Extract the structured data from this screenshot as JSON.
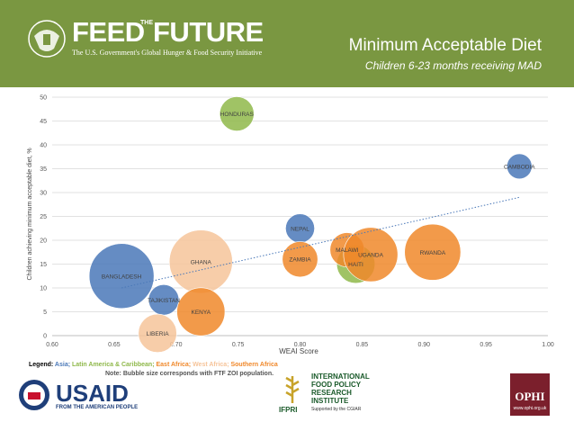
{
  "header": {
    "logo_feed": "FEED",
    "logo_the": "THE",
    "logo_future": "FUTURE",
    "tagline": "The U.S. Government's Global Hunger & Food Security Initiative",
    "title": "Minimum Acceptable Diet",
    "subtitle": "Children 6-23 months receiving MAD",
    "background_color": "#7a9741"
  },
  "chart_data": {
    "type": "scatter",
    "subtype": "bubble",
    "xlabel": "WEAI Score",
    "ylabel": "Children achieving minimum acceptable diet, %",
    "xlim": [
      0.6,
      1.0
    ],
    "ylim": [
      0,
      50
    ],
    "x_ticks": [
      "0.60",
      "0.65",
      "0.70",
      "0.75",
      "0.80",
      "0.85",
      "0.90",
      "0.95",
      "1.00"
    ],
    "x_tick_values": [
      0.6,
      0.65,
      0.7,
      0.75,
      0.8,
      0.85,
      0.9,
      0.95,
      1.0
    ],
    "y_ticks": [
      "0",
      "5",
      "10",
      "15",
      "20",
      "25",
      "30",
      "35",
      "40",
      "45",
      "50"
    ],
    "y_tick_values": [
      0,
      5,
      10,
      15,
      20,
      25,
      30,
      35,
      40,
      45,
      50
    ],
    "grid": true,
    "region_colors": {
      "Asia": "#4a78b8",
      "Latin America & Caribbean": "#8fb84a",
      "East Africa": "#f0882a",
      "West Africa": "#f6c49a",
      "Southern Africa": "#f0882a"
    },
    "points": [
      {
        "label": "BANGLADESH",
        "x": 0.656,
        "y": 12.5,
        "size": 1.0,
        "region": "Asia"
      },
      {
        "label": "TAJIKISTAN",
        "x": 0.69,
        "y": 7.5,
        "size": 0.22,
        "region": "Asia"
      },
      {
        "label": "LIBERIA",
        "x": 0.685,
        "y": 0.5,
        "size": 0.35,
        "region": "West Africa"
      },
      {
        "label": "GHANA",
        "x": 0.72,
        "y": 15.5,
        "size": 0.95,
        "region": "West Africa"
      },
      {
        "label": "KENYA",
        "x": 0.72,
        "y": 5.0,
        "size": 0.55,
        "region": "East Africa"
      },
      {
        "label": "HONDURAS",
        "x": 0.749,
        "y": 46.5,
        "size": 0.28,
        "region": "Latin America & Caribbean"
      },
      {
        "label": "NEPAL",
        "x": 0.8,
        "y": 22.5,
        "size": 0.2,
        "region": "Asia"
      },
      {
        "label": "ZAMBIA",
        "x": 0.8,
        "y": 16.0,
        "size": 0.3,
        "region": "Southern Africa"
      },
      {
        "label": "HAITI",
        "x": 0.845,
        "y": 15.0,
        "size": 0.35,
        "region": "Latin America & Caribbean"
      },
      {
        "label": "MALAWI",
        "x": 0.838,
        "y": 18.0,
        "size": 0.28,
        "region": "Southern Africa"
      },
      {
        "label": "UGANDA",
        "x": 0.857,
        "y": 17.0,
        "size": 0.7,
        "region": "East Africa"
      },
      {
        "label": "RWANDA",
        "x": 0.907,
        "y": 17.5,
        "size": 0.75,
        "region": "East Africa"
      },
      {
        "label": "CAMBODIA",
        "x": 0.977,
        "y": 35.5,
        "size": 0.15,
        "region": "Asia"
      }
    ],
    "trendline": {
      "style": "dotted",
      "color": "#4a78b8",
      "from": [
        0.656,
        10.0
      ],
      "to": [
        0.977,
        29.0
      ]
    }
  },
  "footer": {
    "legend_label": "Legend:",
    "legend_items": [
      {
        "text": "Asia",
        "color": "#4a78b8"
      },
      {
        "text": "Latin America & Caribbean",
        "color": "#8fb84a"
      },
      {
        "text": "East Africa",
        "color": "#f0882a"
      },
      {
        "text": "West Africa",
        "color": "#f6c49a"
      },
      {
        "text": "Southern Africa",
        "color": "#f0882a"
      }
    ],
    "note": "Note: Bubble size corresponds with FTF ZOI population.",
    "usaid_name": "USAID",
    "usaid_sub": "FROM THE AMERICAN PEOPLE",
    "ifpri_abbr": "IFPRI",
    "ifpri_name": "INTERNATIONAL FOOD POLICY RESEARCH INSTITUTE",
    "ifpri_support": "Supported by the CGIAR",
    "ophi_name": "OPHI",
    "ophi_url": "www.ophi.org.uk"
  }
}
